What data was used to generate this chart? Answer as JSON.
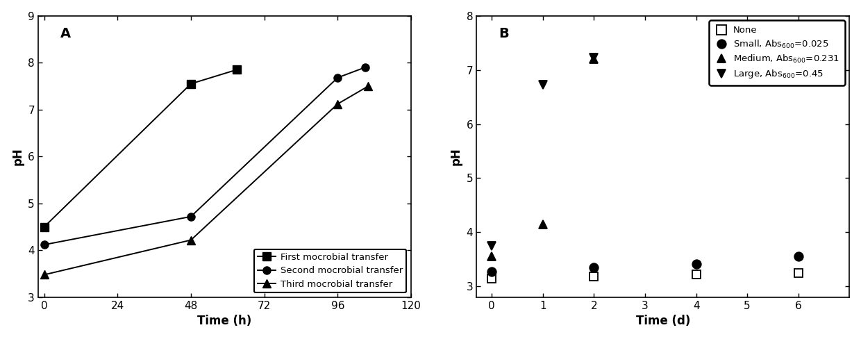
{
  "panel_A": {
    "label": "A",
    "series": [
      {
        "name": "First mocrobial transfer",
        "x": [
          0,
          48,
          63
        ],
        "y": [
          4.5,
          7.55,
          7.85
        ],
        "marker": "s"
      },
      {
        "name": "Second mocrobial transfer",
        "x": [
          0,
          48,
          96,
          105
        ],
        "y": [
          4.12,
          4.72,
          7.68,
          7.9
        ],
        "marker": "o"
      },
      {
        "name": "Third mocrobial transfer",
        "x": [
          0,
          48,
          96,
          106
        ],
        "y": [
          3.48,
          4.22,
          7.12,
          7.5
        ],
        "marker": "^"
      }
    ],
    "xlabel": "Time (h)",
    "ylabel": "pH",
    "xlim": [
      -2,
      120
    ],
    "xticks": [
      0,
      24,
      48,
      72,
      96,
      120
    ],
    "ylim": [
      3,
      9
    ],
    "yticks": [
      3,
      4,
      5,
      6,
      7,
      8,
      9
    ],
    "legend_loc": "lower right"
  },
  "panel_B": {
    "label": "B",
    "series": [
      {
        "name": "None",
        "x": [
          0,
          2,
          4,
          6
        ],
        "y": [
          3.15,
          3.18,
          3.22,
          3.25
        ],
        "marker": "s",
        "fillstyle": "none"
      },
      {
        "name": "Small, Abs$_{600}$=0.025",
        "x": [
          0,
          2,
          4,
          6
        ],
        "y": [
          3.28,
          3.35,
          3.42,
          3.55
        ],
        "marker": "o",
        "fillstyle": "full"
      },
      {
        "name": "Medium, Abs$_{600}$=0.231",
        "x": [
          0,
          1,
          2
        ],
        "y": [
          3.55,
          4.15,
          7.2
        ],
        "marker": "^",
        "fillstyle": "full"
      },
      {
        "name": "Large, Abs$_{600}$=0.45",
        "x": [
          0,
          1,
          2
        ],
        "y": [
          3.75,
          6.72,
          7.22
        ],
        "marker": "v",
        "fillstyle": "full"
      }
    ],
    "xlabel": "Time (d)",
    "ylabel": "pH",
    "xlim": [
      -0.3,
      7
    ],
    "xticks": [
      0,
      1,
      2,
      3,
      4,
      5,
      6
    ],
    "ylim": [
      2.8,
      8
    ],
    "yticks": [
      3,
      4,
      5,
      6,
      7,
      8
    ],
    "legend_loc": "upper right"
  }
}
